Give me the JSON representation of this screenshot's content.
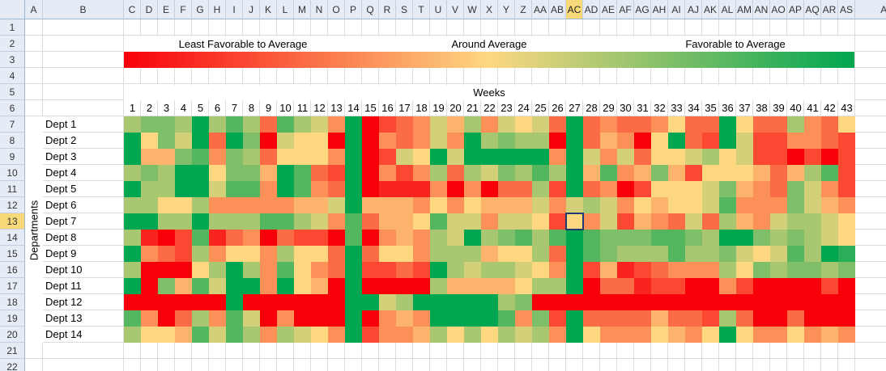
{
  "spreadsheet": {
    "active_column": "AC",
    "active_row": 13,
    "column_headers": [
      "A",
      "B",
      "C",
      "D",
      "E",
      "F",
      "G",
      "H",
      "I",
      "J",
      "K",
      "L",
      "M",
      "N",
      "O",
      "P",
      "Q",
      "R",
      "S",
      "T",
      "U",
      "V",
      "W",
      "X",
      "Y",
      "Z",
      "AA",
      "AB",
      "AC",
      "AD",
      "AE",
      "AF",
      "AG",
      "AH",
      "AI",
      "AJ",
      "AK",
      "AL",
      "AM",
      "AN",
      "AO",
      "AP",
      "AQ",
      "AR",
      "AS",
      "AT"
    ],
    "row_numbers": [
      "1",
      "2",
      "3",
      "4",
      "5",
      "6",
      "7",
      "8",
      "9",
      "10",
      "11",
      "12",
      "13",
      "14",
      "15",
      "16",
      "17",
      "18",
      "19",
      "20",
      "21",
      "22"
    ]
  },
  "legend": {
    "left_label": "Least Favorable to Average",
    "middle_label": "Around Average",
    "right_label": "Favorable to Average",
    "colors": [
      "#f8000a",
      "#fdd881",
      "#00a650"
    ]
  },
  "chart_data": {
    "type": "heatmap",
    "title": "",
    "xlabel": "Weeks",
    "ylabel": "Departments",
    "x": [
      "1",
      "2",
      "3",
      "4",
      "5",
      "6",
      "7",
      "8",
      "9",
      "10",
      "11",
      "12",
      "13",
      "14",
      "15",
      "16",
      "17",
      "18",
      "19",
      "20",
      "21",
      "22",
      "23",
      "24",
      "25",
      "26",
      "27",
      "28",
      "29",
      "30",
      "31",
      "32",
      "33",
      "34",
      "35",
      "36",
      "37",
      "38",
      "39",
      "40",
      "41",
      "42",
      "43"
    ],
    "y": [
      "Dept 1",
      "Dept 2",
      "Dept 3",
      "Dept 4",
      "Dept 5",
      "Dept 6",
      "Dept 7",
      "Dept 8",
      "Dept 9",
      "Dept 10",
      "Dept 11",
      "Dept 12",
      "Dept 13",
      "Dept 14"
    ],
    "scale": {
      "min": -3,
      "max": 3,
      "min_label": "Least Favorable to Average",
      "mid_label": "Around Average",
      "max_label": "Favorable to Average"
    },
    "values": [
      [
        1,
        1.5,
        1.5,
        1,
        3,
        1,
        2,
        1,
        -1.5,
        2,
        1,
        0.5,
        -1,
        3,
        -3,
        -2,
        -1.5,
        -1,
        0.5,
        -0.5,
        1,
        -1,
        0.5,
        0,
        0.5,
        -1.5,
        3,
        -1.5,
        -1,
        -1.5,
        -1.5,
        -1,
        0,
        -1.5,
        -1.5,
        3,
        0,
        -1.5,
        -1.5,
        1,
        -1,
        -1.5,
        0
      ],
      [
        3,
        0,
        1.5,
        0.5,
        3,
        -1.5,
        3,
        1.5,
        -3,
        0.5,
        0,
        0,
        -3,
        3,
        -3,
        -1,
        -1.5,
        -1,
        0.5,
        -1,
        3,
        1,
        1.5,
        1,
        1,
        -3,
        3,
        -1.5,
        -0.5,
        -1,
        -3,
        0,
        3,
        -1.5,
        -2,
        3,
        0.5,
        -2,
        -2,
        -1,
        -1,
        -1.5,
        -2
      ],
      [
        3,
        -0.5,
        -0.5,
        1.5,
        2,
        -1,
        1.5,
        1,
        -1.5,
        0,
        0,
        0,
        -1,
        3,
        -3,
        -2,
        0.5,
        0,
        3,
        0.5,
        3,
        3,
        3,
        3,
        3,
        -1,
        3,
        0.5,
        -1,
        0.5,
        -1.5,
        0,
        0,
        0.5,
        1,
        0,
        0.5,
        -2,
        -2,
        -3,
        -2,
        -3,
        -2
      ],
      [
        1,
        1.5,
        1,
        3,
        3,
        0,
        1.5,
        1.5,
        -0.5,
        3,
        2,
        -1.5,
        -2,
        3,
        -3,
        -1,
        -2,
        -1,
        1,
        -1.5,
        1,
        0.5,
        1.5,
        1,
        2,
        1,
        3,
        -0.5,
        2,
        -1,
        -0.5,
        1.5,
        -0.5,
        -2,
        0,
        0,
        0,
        -0.5,
        -1.5,
        -0.5,
        1,
        2,
        -2
      ],
      [
        3,
        1,
        1,
        3,
        3,
        0.5,
        2,
        2,
        -1,
        3,
        2,
        -1,
        -1.5,
        3,
        -3,
        -2.5,
        -2.5,
        -2.5,
        -1,
        -3,
        -1,
        -3,
        -1.5,
        -1.5,
        1,
        -2,
        3,
        -1.5,
        -1,
        -3,
        -2,
        0,
        0,
        0,
        0.5,
        1.5,
        -0.5,
        -1,
        -1.5,
        1.5,
        0.5,
        -1,
        -2
      ],
      [
        1,
        1,
        0,
        0,
        1,
        -1,
        -1,
        -1,
        -1,
        -1,
        -0.5,
        -0.5,
        0.5,
        3,
        -0.5,
        -0.5,
        -0.5,
        -1,
        0,
        -1,
        0,
        -0.5,
        -0.5,
        -0.5,
        0.5,
        -1,
        0.5,
        1,
        0.5,
        -1,
        0,
        -0.5,
        0,
        0,
        0.5,
        2,
        -1,
        -1,
        -1,
        1.5,
        0.5,
        -0.5,
        -1
      ],
      [
        3,
        3,
        1,
        1,
        3,
        1,
        1,
        1,
        2,
        2,
        1,
        0.5,
        -1,
        2,
        -1.5,
        -0.5,
        -0.5,
        0,
        2,
        0.5,
        0.5,
        -1,
        0.5,
        0.5,
        0,
        -2,
        0,
        -1,
        0.5,
        -2,
        -0.5,
        -1,
        -1.5,
        0.5,
        -1.5,
        1,
        -0.5,
        -1,
        0.5,
        1,
        1,
        0.5,
        0
      ],
      [
        1,
        -2.5,
        -3,
        -2,
        2,
        -2.5,
        -1.5,
        -1,
        -3,
        -1.5,
        -2,
        -2,
        -3,
        2,
        -3,
        -1,
        -0.5,
        -1,
        1,
        0.5,
        3,
        1,
        1.5,
        2,
        1,
        2,
        3,
        2,
        1.5,
        1.5,
        1.5,
        2,
        2,
        1.5,
        1,
        3,
        3,
        1.5,
        1,
        1.5,
        1,
        0.5,
        0
      ],
      [
        3,
        -1,
        -1.5,
        -2,
        1,
        -1,
        0,
        0,
        -1,
        1,
        0,
        0,
        -1.5,
        3,
        -1.5,
        0,
        0,
        -1,
        1,
        1,
        1,
        -0.5,
        0,
        0,
        1,
        -1.5,
        3,
        2,
        1.5,
        1,
        1,
        1,
        2,
        1,
        1,
        1.5,
        0.5,
        0,
        0.5,
        2,
        1,
        3,
        2.5
      ],
      [
        1,
        -3,
        -3,
        -3,
        0,
        1,
        3,
        1,
        -1,
        2,
        0,
        -1,
        -1.5,
        3,
        -2,
        -2,
        -1.5,
        -2,
        3,
        1,
        0.5,
        1,
        1,
        0.5,
        0,
        -1,
        3,
        -2,
        -0.5,
        -2.5,
        -2,
        -1.5,
        -1,
        -1,
        -1,
        1,
        0,
        1.5,
        1,
        1.5,
        1.5,
        1,
        1.5
      ],
      [
        3,
        -3,
        1.5,
        -0.5,
        2,
        0.5,
        3,
        3,
        -1,
        3,
        0,
        -0.5,
        -3,
        3,
        -3,
        -3,
        -3,
        -3,
        1,
        -0.5,
        -0.5,
        -0.5,
        -0.5,
        0,
        1,
        1,
        3,
        -3,
        -1.5,
        -1.5,
        -2.5,
        -2,
        -2,
        -3,
        -3,
        -1,
        -2,
        -3,
        -3,
        -3,
        -3,
        -2,
        -3
      ],
      [
        -3,
        -3,
        -3,
        -3,
        -3,
        -3,
        3,
        -3,
        -3,
        -3,
        -3,
        -3,
        -3,
        3,
        3,
        0.5,
        1,
        3,
        3,
        3,
        3,
        3,
        1,
        1.5,
        -3,
        -3,
        -3,
        -3,
        -3,
        -3,
        -3,
        -3,
        -3,
        -3,
        -3,
        -3,
        -3,
        -3,
        -3,
        -3,
        -3,
        -3,
        -3
      ],
      [
        2,
        -1,
        -3,
        -1.5,
        1,
        -1,
        2,
        0.5,
        -3,
        -1,
        -3,
        -3,
        -3,
        3,
        -3,
        -1,
        -0.5,
        -1,
        3,
        3,
        3,
        3,
        2,
        -1,
        1.5,
        -2,
        3,
        -1.5,
        -1.5,
        -1.5,
        -1.5,
        -0.5,
        -1.5,
        -1.5,
        -2,
        1,
        -1.5,
        -3,
        -3,
        -1.5,
        -3,
        -3,
        -3
      ],
      [
        1,
        0,
        0,
        -0.5,
        2,
        0.5,
        2,
        1,
        -1,
        1,
        0.5,
        0,
        -1,
        3,
        -2,
        -1,
        -1,
        -0.5,
        1,
        0,
        1,
        0,
        1,
        0.5,
        1,
        -1,
        3,
        0,
        -1,
        -1,
        -1,
        0,
        -0.5,
        -1,
        0,
        3,
        0,
        -1,
        -1,
        0,
        -1,
        -0.5,
        -1
      ]
    ]
  }
}
